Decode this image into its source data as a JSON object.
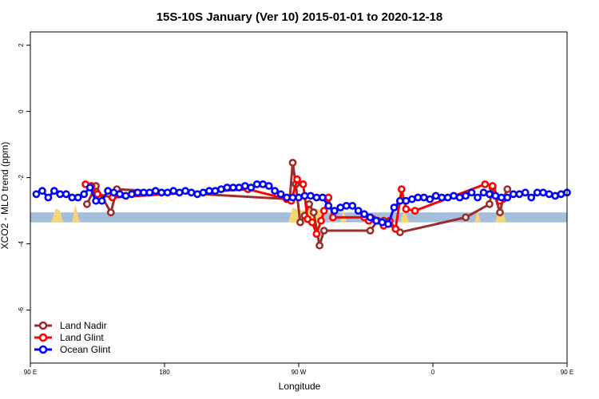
{
  "chart_data": {
    "type": "line",
    "title": "15S-10S January (Ver 10)   2015-01-01 to 2020-12-18",
    "xlabel": "Longitude",
    "ylabel": "XCO2 - MLO trend (ppm)",
    "xlim": [
      90,
      450
    ],
    "ylim": [
      -7.6,
      2.4
    ],
    "x_ticks": [
      {
        "value": 90,
        "label": "90 E"
      },
      {
        "value": 180,
        "label": "180"
      },
      {
        "value": 270,
        "label": "90 W"
      },
      {
        "value": 360,
        "label": "0"
      },
      {
        "value": 450,
        "label": "90 E"
      }
    ],
    "y_ticks": [
      {
        "value": 2,
        "label": "2"
      },
      {
        "value": 0,
        "label": "0"
      },
      {
        "value": -2,
        "label": "-2"
      },
      {
        "value": -4,
        "label": "-4"
      },
      {
        "value": -6,
        "label": "-6"
      }
    ],
    "grid": false,
    "legend_position": "bottom-left",
    "background_band": {
      "y_range": [
        -3.35,
        -3.05
      ],
      "color": "#a4bedc"
    },
    "land_color": "#f7d575",
    "series": [
      {
        "name": "Land Nadir",
        "color": "#9b2d2d",
        "x": [
          128,
          134,
          144,
          148,
          264,
          266,
          268,
          271,
          274,
          277,
          280,
          284,
          287,
          318,
          323,
          327,
          330,
          338,
          382,
          398,
          400,
          405,
          407,
          410
        ],
        "y": [
          -2.8,
          -2.25,
          -3.05,
          -2.35,
          -2.65,
          -1.55,
          -2.2,
          -3.35,
          -3.15,
          -2.8,
          -3.05,
          -4.05,
          -3.6,
          -3.6,
          -3.3,
          -3.3,
          -3.4,
          -3.65,
          -3.2,
          -2.8,
          -2.3,
          -3.05,
          -2.65,
          -2.35
        ]
      },
      {
        "name": "Land Glint",
        "color": "#ff0000",
        "x": [
          127,
          131,
          135,
          145,
          236,
          262,
          265,
          269,
          273,
          276,
          279,
          282,
          285,
          287,
          290,
          293,
          314,
          317,
          320,
          323,
          327,
          331,
          335,
          339,
          342,
          348,
          395,
          400,
          405
        ],
        "y": [
          -2.2,
          -2.25,
          -2.5,
          -2.6,
          -2.35,
          -2.65,
          -2.7,
          -2.05,
          -2.2,
          -3.25,
          -3.35,
          -3.7,
          -3.3,
          -3.0,
          -2.6,
          -3.2,
          -3.2,
          -3.3,
          -3.25,
          -3.3,
          -3.45,
          -3.3,
          -3.55,
          -2.35,
          -2.95,
          -3.0,
          -2.2,
          -2.25,
          -2.7
        ]
      },
      {
        "name": "Ocean Glint",
        "color": "#0000ff",
        "x": [
          94,
          98,
          102,
          106,
          110,
          114,
          118,
          122,
          126,
          130,
          134,
          138,
          142,
          146,
          150,
          154,
          158,
          162,
          166,
          170,
          174,
          178,
          182,
          186,
          190,
          194,
          198,
          202,
          206,
          210,
          214,
          218,
          222,
          226,
          230,
          234,
          238,
          242,
          246,
          250,
          254,
          258,
          262,
          266,
          270,
          274,
          278,
          282,
          286,
          290,
          294,
          298,
          302,
          306,
          310,
          314,
          318,
          322,
          326,
          330,
          334,
          338,
          342,
          346,
          350,
          354,
          358,
          362,
          366,
          370,
          374,
          378,
          382,
          386,
          390,
          394,
          398,
          402,
          406,
          410,
          414,
          418,
          422,
          426,
          430,
          434,
          438,
          442,
          446,
          450
        ],
        "y": [
          -2.5,
          -2.4,
          -2.6,
          -2.4,
          -2.5,
          -2.5,
          -2.6,
          -2.6,
          -2.5,
          -2.3,
          -2.7,
          -2.7,
          -2.4,
          -2.45,
          -2.5,
          -2.55,
          -2.5,
          -2.45,
          -2.45,
          -2.45,
          -2.4,
          -2.45,
          -2.45,
          -2.4,
          -2.45,
          -2.4,
          -2.45,
          -2.5,
          -2.45,
          -2.4,
          -2.4,
          -2.35,
          -2.3,
          -2.3,
          -2.3,
          -2.25,
          -2.3,
          -2.2,
          -2.2,
          -2.25,
          -2.4,
          -2.5,
          -2.6,
          -2.6,
          -2.6,
          -2.55,
          -2.55,
          -2.6,
          -2.6,
          -2.85,
          -3.0,
          -2.9,
          -2.85,
          -2.85,
          -3.0,
          -3.1,
          -3.2,
          -3.3,
          -3.35,
          -3.4,
          -2.9,
          -2.7,
          -2.7,
          -2.65,
          -2.6,
          -2.6,
          -2.65,
          -2.55,
          -2.6,
          -2.6,
          -2.55,
          -2.6,
          -2.55,
          -2.45,
          -2.6,
          -2.45,
          -2.5,
          -2.55,
          -2.6,
          -2.6,
          -2.5,
          -2.5,
          -2.45,
          -2.6,
          -2.45,
          -2.45,
          -2.5,
          -2.55,
          -2.5,
          -2.45
        ]
      }
    ]
  }
}
